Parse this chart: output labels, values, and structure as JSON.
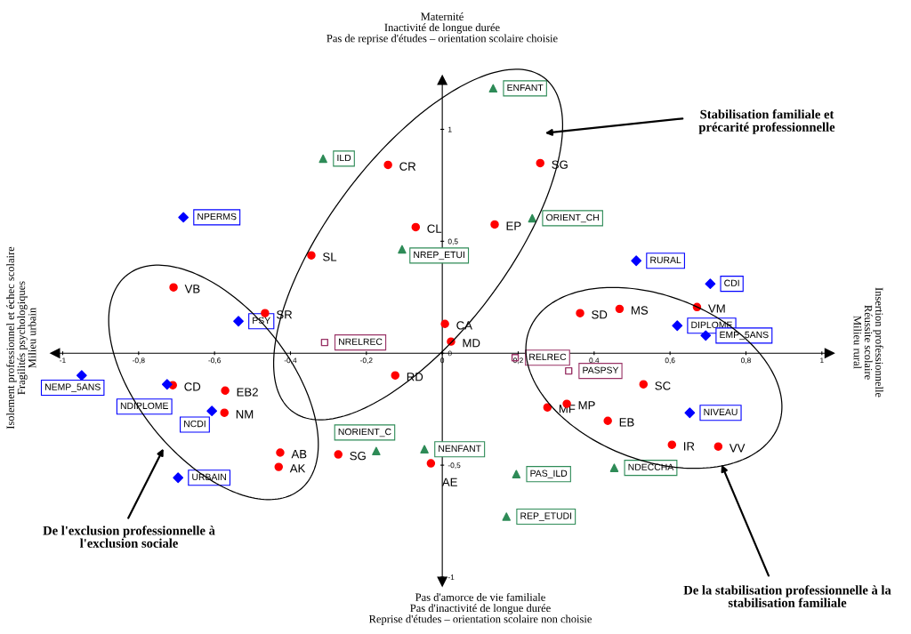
{
  "chart_data": {
    "type": "scatter",
    "annotations": [
      "Maternité\nInactivité de longue durée\nPas de reprise d'études – orientation scolaire choisie",
      "Pas d'amorce de vie familiale\nPas d'inactivité de longue durée\nReprise d'études – orientation scolaire non choisie",
      "Isolement professionnel et échec scolaire\nFragilités psychologiques\nMilieu urbain",
      "Insertion professionnelle\nRéussite scolaire\nMilieu rural",
      "Stabilisation familiale et\nprécarité professionnelle",
      "De l'exclusion professionnelle à\nl'exclusion sociale",
      "De la stabilisation professionnelle à la\nstabilisation familiale",
      {
        "text": "CR",
        "x": -0.143,
        "y": 0.841
      },
      {
        "text": "CL",
        "x": -0.07,
        "y": 0.563
      },
      {
        "text": "SL",
        "x": -0.345,
        "y": 0.437
      },
      {
        "text": "VB",
        "x": -0.708,
        "y": 0.294
      },
      {
        "text": "SR",
        "x": -0.467,
        "y": 0.179
      },
      {
        "text": "CA",
        "x": 0.007,
        "y": 0.131
      },
      {
        "text": "MD",
        "x": 0.023,
        "y": 0.052
      },
      {
        "text": "SG",
        "x": 0.258,
        "y": 0.849
      },
      {
        "text": "EP",
        "x": 0.138,
        "y": 0.575
      },
      {
        "text": "SD",
        "x": 0.363,
        "y": 0.179
      },
      {
        "text": "MS",
        "x": 0.467,
        "y": 0.198
      },
      {
        "text": "VM",
        "x": 0.671,
        "y": 0.206
      },
      {
        "text": "RD",
        "x": -0.124,
        "y": -0.099
      },
      {
        "text": "CD",
        "x": -0.71,
        "y": -0.143
      },
      {
        "text": "EB2",
        "x": -0.572,
        "y": -0.167
      },
      {
        "text": "NM",
        "x": -0.574,
        "y": -0.266
      },
      {
        "text": "AB",
        "x": -0.427,
        "y": -0.444
      },
      {
        "text": "AK",
        "x": -0.431,
        "y": -0.508
      },
      {
        "text": "SG",
        "x": -0.274,
        "y": -0.452
      },
      {
        "text": "AE",
        "x": -0.03,
        "y": -0.492
      },
      {
        "text": "SC",
        "x": 0.53,
        "y": -0.139
      },
      {
        "text": "MF",
        "x": 0.277,
        "y": -0.242
      },
      {
        "text": "MP",
        "x": 0.328,
        "y": -0.226
      },
      {
        "text": "EB",
        "x": 0.436,
        "y": -0.302
      },
      {
        "text": "IR",
        "x": 0.605,
        "y": -0.409
      },
      {
        "text": "VV",
        "x": 0.727,
        "y": -0.417
      },
      {
        "text": "ENFANT",
        "x": 0.134,
        "y": 1.183
      },
      {
        "text": "ILD",
        "x": -0.314,
        "y": 0.869
      },
      {
        "text": "ORIENT_CH",
        "x": 0.237,
        "y": 0.603
      },
      {
        "text": "NREP_ETUI",
        "x": -0.106,
        "y": 0.464
      },
      {
        "text": "NORIENT_C",
        "x": -0.174,
        "y": -0.437
      },
      {
        "text": "NENFANT",
        "x": -0.047,
        "y": -0.429
      },
      {
        "text": "PAS_ILD",
        "x": 0.195,
        "y": -0.54
      },
      {
        "text": "REP_ETUDI",
        "x": 0.169,
        "y": -0.73
      },
      {
        "text": "NDECCHA",
        "x": 0.453,
        "y": -0.512
      },
      {
        "text": "NPERMS",
        "x": -0.682,
        "y": 0.607
      },
      {
        "text": "PSY",
        "x": -0.537,
        "y": 0.143
      },
      {
        "text": "RURAL",
        "x": 0.511,
        "y": 0.413
      },
      {
        "text": "CDI",
        "x": 0.706,
        "y": 0.31
      },
      {
        "text": "DIPLOME",
        "x": 0.619,
        "y": 0.123
      },
      {
        "text": "EMP_5ANS",
        "x": 0.694,
        "y": 0.079
      },
      {
        "text": "NEMP_5ANS",
        "x": -0.95,
        "y": -0.099
      },
      {
        "text": "NDIPLOME",
        "x": -0.725,
        "y": -0.139
      },
      {
        "text": "NCDI",
        "x": -0.607,
        "y": -0.258
      },
      {
        "text": "URBAIN",
        "x": -0.696,
        "y": -0.556
      },
      {
        "text": "NIVEAU",
        "x": 0.652,
        "y": -0.266
      },
      {
        "text": "NRELREC",
        "x": -0.31,
        "y": 0.048
      },
      {
        "text": "RELREC",
        "x": 0.192,
        "y": -0.02
      },
      {
        "text": "PASPSY",
        "x": 0.333,
        "y": -0.079
      }
    ],
    "series": [
      {
        "color": "#ff0000",
        "marker": "circle",
        "x": [
          -0.143,
          -0.07,
          -0.345,
          -0.708,
          -0.467,
          0.007,
          0.023,
          0.258,
          0.138,
          0.363,
          0.467,
          0.671,
          -0.124,
          -0.71,
          -0.572,
          -0.574,
          -0.427,
          -0.431,
          -0.274,
          -0.03,
          0.53,
          0.277,
          0.328,
          0.436,
          0.605,
          0.727
        ],
        "values": [
          0.841,
          0.563,
          0.437,
          0.294,
          0.179,
          0.131,
          0.052,
          0.849,
          0.575,
          0.179,
          0.198,
          0.206,
          -0.099,
          -0.143,
          -0.167,
          -0.266,
          -0.444,
          -0.508,
          -0.452,
          -0.492,
          -0.139,
          -0.242,
          -0.226,
          -0.302,
          -0.409,
          -0.417
        ]
      },
      {
        "color": "#2e8b57",
        "marker": "triangle",
        "x": [
          0.134,
          -0.314,
          0.237,
          -0.106,
          -0.174,
          -0.047,
          0.195,
          0.169,
          0.453
        ],
        "values": [
          1.183,
          0.869,
          0.603,
          0.464,
          -0.437,
          -0.429,
          -0.54,
          -0.73,
          -0.512
        ]
      },
      {
        "color": "#0000ff",
        "marker": "diamond",
        "x": [
          -0.682,
          -0.537,
          0.511,
          0.706,
          0.619,
          0.694,
          -0.95,
          -0.725,
          -0.607,
          -0.696,
          0.652
        ],
        "values": [
          0.607,
          0.143,
          0.413,
          0.31,
          0.123,
          0.079,
          -0.099,
          -0.139,
          -0.258,
          -0.556,
          -0.266
        ]
      },
      {
        "color": "#993366",
        "marker": "square",
        "x": [
          -0.31,
          0.192,
          0.333
        ],
        "values": [
          0.048,
          -0.02,
          -0.079
        ]
      }
    ],
    "xlim": [
      -1.02,
      1.02
    ],
    "ylim": [
      -1.02,
      1.22
    ],
    "xticks": [
      {
        "value": -1,
        "label": "-1"
      },
      {
        "value": -0.8,
        "label": "-0,8"
      },
      {
        "value": -0.6,
        "label": "-0,6"
      },
      {
        "value": -0.4,
        "label": "-0,4"
      },
      {
        "value": -0.2,
        "label": "-0,2"
      },
      {
        "value": 0,
        "label": "0"
      },
      {
        "value": 0.2,
        "label": "0,2"
      },
      {
        "value": 0.4,
        "label": "0,4"
      },
      {
        "value": 0.6,
        "label": "0,6"
      },
      {
        "value": 0.8,
        "label": "0,8"
      },
      {
        "value": 1,
        "label": "1"
      }
    ],
    "yticks": [
      {
        "value": -1,
        "label": "-1"
      },
      {
        "value": -0.5,
        "label": "-0,5"
      },
      {
        "value": 0,
        "label": "0"
      },
      {
        "value": 0.5,
        "label": "0,5"
      },
      {
        "value": 1,
        "label": "1"
      }
    ],
    "grid": false,
    "legend": false
  }
}
